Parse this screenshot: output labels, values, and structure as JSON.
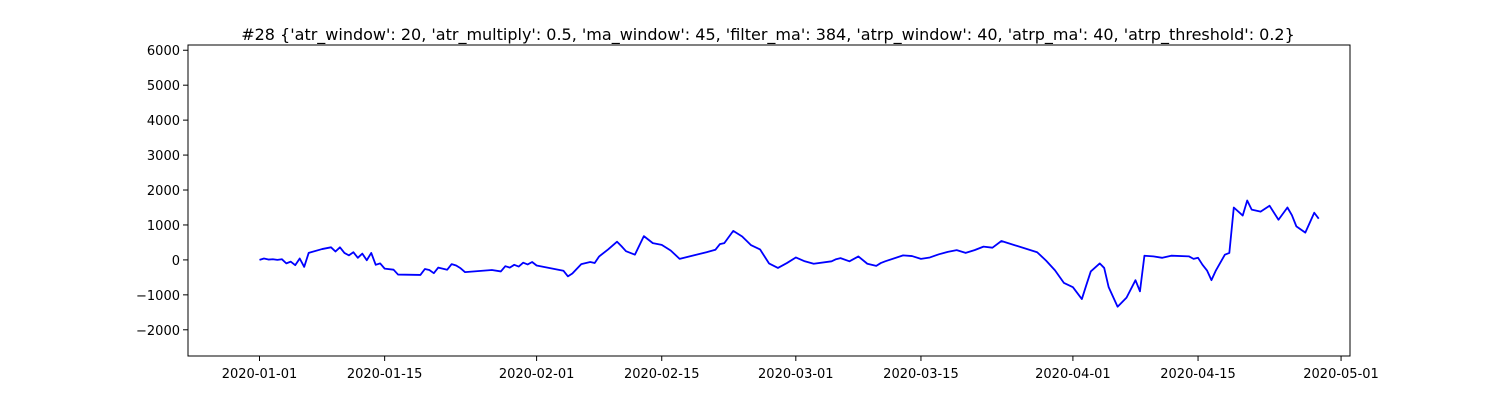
{
  "chart_data": {
    "type": "line",
    "title": "#28 {'atr_window': 20, 'atr_multiply': 0.5, 'ma_window': 45, 'filter_ma': 384, 'atrp_window': 40, 'atrp_ma': 40, 'atrp_threshold': 0.2}",
    "xlabel": "",
    "ylabel": "",
    "x_axis": "date",
    "xlim": [
      "2019-12-24",
      "2020-05-02"
    ],
    "ylim": [
      -2750,
      6150
    ],
    "grid": false,
    "line_color": "#0000ff",
    "x_ticks": [
      "2020-01-01",
      "2020-01-15",
      "2020-02-01",
      "2020-02-15",
      "2020-03-01",
      "2020-03-15",
      "2020-04-01",
      "2020-04-15",
      "2020-05-01"
    ],
    "y_ticks": [
      -2000,
      -1000,
      0,
      1000,
      2000,
      3000,
      4000,
      5000,
      6000
    ],
    "series": [
      {
        "points": [
          [
            "2020-01-01",
            0
          ],
          [
            "2020-01-01",
            40
          ],
          [
            "2020-01-02",
            10
          ],
          [
            "2020-01-02",
            20
          ],
          [
            "2020-01-03",
            0
          ],
          [
            "2020-01-03",
            20
          ],
          [
            "2020-01-04",
            -100
          ],
          [
            "2020-01-04",
            -50
          ],
          [
            "2020-01-05",
            -150
          ],
          [
            "2020-01-05",
            40
          ],
          [
            "2020-01-06",
            -200
          ],
          [
            "2020-01-06",
            200
          ],
          [
            "2020-01-08",
            310
          ],
          [
            "2020-01-09",
            360
          ],
          [
            "2020-01-09",
            240
          ],
          [
            "2020-01-10",
            360
          ],
          [
            "2020-01-10",
            200
          ],
          [
            "2020-01-11",
            130
          ],
          [
            "2020-01-11",
            220
          ],
          [
            "2020-01-12",
            60
          ],
          [
            "2020-01-12",
            180
          ],
          [
            "2020-01-13",
            -10
          ],
          [
            "2020-01-13",
            200
          ],
          [
            "2020-01-14",
            -140
          ],
          [
            "2020-01-14",
            -100
          ],
          [
            "2020-01-15",
            -250
          ],
          [
            "2020-01-16",
            -280
          ],
          [
            "2020-01-16",
            -420
          ],
          [
            "2020-01-19",
            -430
          ],
          [
            "2020-01-19",
            -260
          ],
          [
            "2020-01-20",
            -290
          ],
          [
            "2020-01-20",
            -380
          ],
          [
            "2020-01-21",
            -220
          ],
          [
            "2020-01-22",
            -280
          ],
          [
            "2020-01-22",
            -120
          ],
          [
            "2020-01-23",
            -160
          ],
          [
            "2020-01-23",
            -240
          ],
          [
            "2020-01-24",
            -350
          ],
          [
            "2020-01-27",
            -290
          ],
          [
            "2020-01-28",
            -330
          ],
          [
            "2020-01-28",
            -180
          ],
          [
            "2020-01-29",
            -220
          ],
          [
            "2020-01-29",
            -140
          ],
          [
            "2020-01-30",
            -190
          ],
          [
            "2020-01-30",
            -80
          ],
          [
            "2020-01-31",
            -130
          ],
          [
            "2020-01-31",
            -60
          ],
          [
            "2020-02-01",
            -160
          ],
          [
            "2020-02-04",
            -310
          ],
          [
            "2020-02-04",
            -470
          ],
          [
            "2020-02-05",
            -390
          ],
          [
            "2020-02-06",
            -120
          ],
          [
            "2020-02-07",
            -60
          ],
          [
            "2020-02-07",
            -90
          ],
          [
            "2020-02-08",
            100
          ],
          [
            "2020-02-09",
            300
          ],
          [
            "2020-02-10",
            520
          ],
          [
            "2020-02-10",
            390
          ],
          [
            "2020-02-11",
            250
          ],
          [
            "2020-02-12",
            150
          ],
          [
            "2020-02-13",
            680
          ],
          [
            "2020-02-14",
            480
          ],
          [
            "2020-02-15",
            430
          ],
          [
            "2020-02-16",
            270
          ],
          [
            "2020-02-17",
            30
          ],
          [
            "2020-02-20",
            220
          ],
          [
            "2020-02-21",
            290
          ],
          [
            "2020-02-21",
            450
          ],
          [
            "2020-02-22",
            480
          ],
          [
            "2020-02-23",
            830
          ],
          [
            "2020-02-24",
            670
          ],
          [
            "2020-02-25",
            420
          ],
          [
            "2020-02-26",
            300
          ],
          [
            "2020-02-27",
            -100
          ],
          [
            "2020-02-28",
            -230
          ],
          [
            "2020-02-29",
            -90
          ],
          [
            "2020-03-01",
            70
          ],
          [
            "2020-03-02",
            -40
          ],
          [
            "2020-03-03",
            -110
          ],
          [
            "2020-03-05",
            -40
          ],
          [
            "2020-03-05",
            20
          ],
          [
            "2020-03-06",
            50
          ],
          [
            "2020-03-07",
            -40
          ],
          [
            "2020-03-08",
            100
          ],
          [
            "2020-03-09",
            -110
          ],
          [
            "2020-03-10",
            -170
          ],
          [
            "2020-03-10",
            -90
          ],
          [
            "2020-03-11",
            -40
          ],
          [
            "2020-03-13",
            130
          ],
          [
            "2020-03-14",
            110
          ],
          [
            "2020-03-15",
            30
          ],
          [
            "2020-03-16",
            70
          ],
          [
            "2020-03-17",
            160
          ],
          [
            "2020-03-18",
            230
          ],
          [
            "2020-03-19",
            280
          ],
          [
            "2020-03-20",
            200
          ],
          [
            "2020-03-21",
            280
          ],
          [
            "2020-03-22",
            380
          ],
          [
            "2020-03-23",
            350
          ],
          [
            "2020-03-24",
            540
          ],
          [
            "2020-03-28",
            220
          ],
          [
            "2020-03-29",
            -20
          ],
          [
            "2020-03-30",
            -300
          ],
          [
            "2020-03-31",
            -660
          ],
          [
            "2020-03-31",
            -720
          ],
          [
            "2020-04-01",
            -780
          ],
          [
            "2020-04-02",
            -1120
          ],
          [
            "2020-04-02",
            -720
          ],
          [
            "2020-04-03",
            -330
          ],
          [
            "2020-04-04",
            -100
          ],
          [
            "2020-04-04",
            -230
          ],
          [
            "2020-04-05",
            -780
          ],
          [
            "2020-04-06",
            -1340
          ],
          [
            "2020-04-07",
            -1080
          ],
          [
            "2020-04-08",
            -580
          ],
          [
            "2020-04-08",
            -900
          ],
          [
            "2020-04-09",
            120
          ],
          [
            "2020-04-10",
            100
          ],
          [
            "2020-04-11",
            60
          ],
          [
            "2020-04-12",
            120
          ],
          [
            "2020-04-14",
            100
          ],
          [
            "2020-04-14",
            30
          ],
          [
            "2020-04-15",
            60
          ],
          [
            "2020-04-15",
            -140
          ],
          [
            "2020-04-16",
            -300
          ],
          [
            "2020-04-16",
            -580
          ],
          [
            "2020-04-17",
            -300
          ],
          [
            "2020-04-18",
            150
          ],
          [
            "2020-04-18",
            200
          ],
          [
            "2020-04-19",
            1500
          ],
          [
            "2020-04-20",
            1270
          ],
          [
            "2020-04-20",
            1700
          ],
          [
            "2020-04-21",
            1440
          ],
          [
            "2020-04-22",
            1380
          ],
          [
            "2020-04-23",
            1550
          ],
          [
            "2020-04-24",
            1150
          ],
          [
            "2020-04-25",
            1500
          ],
          [
            "2020-04-25",
            1280
          ],
          [
            "2020-04-26",
            960
          ],
          [
            "2020-04-27",
            780
          ],
          [
            "2020-04-28",
            1350
          ],
          [
            "2020-04-28",
            1180
          ]
        ]
      }
    ]
  }
}
